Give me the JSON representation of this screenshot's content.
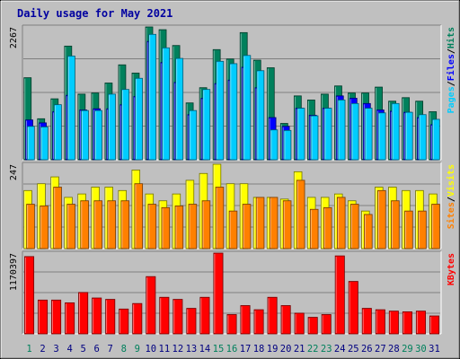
{
  "chart_data": [
    {
      "type": "bar",
      "panel": "hits-files-pages",
      "title": "Daily usage for May 2021",
      "categories": [
        "1",
        "2",
        "3",
        "4",
        "5",
        "6",
        "7",
        "8",
        "9",
        "10",
        "11",
        "12",
        "13",
        "14",
        "15",
        "16",
        "17",
        "18",
        "19",
        "20",
        "21",
        "22",
        "23",
        "24",
        "25",
        "26",
        "27",
        "28",
        "29",
        "30",
        "31"
      ],
      "ymax_label": "2267",
      "ylim": [
        0,
        2267
      ],
      "series": [
        {
          "name": "Hits",
          "color": "#00805c",
          "values": [
            1400,
            700,
            1040,
            1940,
            1120,
            1140,
            1310,
            1620,
            1480,
            2267,
            2220,
            1950,
            970,
            1230,
            1880,
            1720,
            2170,
            1700,
            1570,
            620,
            1090,
            1020,
            1120,
            1260,
            1140,
            1140,
            1240,
            1000,
            1060,
            1000,
            820
          ]
        },
        {
          "name": "Files",
          "color": "#0000ff",
          "values": [
            680,
            630,
            820,
            1100,
            850,
            870,
            870,
            940,
            1080,
            2020,
            1660,
            1320,
            770,
            1050,
            1300,
            1360,
            1580,
            1230,
            720,
            570,
            880,
            760,
            880,
            1090,
            1050,
            960,
            850,
            830,
            810,
            720,
            600
          ]
        },
        {
          "name": "Pages",
          "color": "#00ccff",
          "values": [
            570,
            560,
            940,
            1770,
            840,
            840,
            1120,
            1200,
            1390,
            2140,
            1910,
            1730,
            840,
            1200,
            1680,
            1640,
            1780,
            1520,
            510,
            500,
            880,
            750,
            880,
            1020,
            960,
            880,
            800,
            960,
            810,
            770,
            690
          ]
        }
      ],
      "legend": [
        "Pages",
        "/",
        "Files",
        "/",
        "Hits"
      ],
      "legend_colors": [
        "#00ccff",
        "#000000",
        "#0000ff",
        "#000000",
        "#00805c"
      ],
      "grid": true,
      "weekend_days": [
        1,
        8,
        9,
        15,
        16,
        22,
        23,
        29,
        30
      ]
    },
    {
      "type": "bar",
      "panel": "visits-sites",
      "categories": [
        "1",
        "2",
        "3",
        "4",
        "5",
        "6",
        "7",
        "8",
        "9",
        "10",
        "11",
        "12",
        "13",
        "14",
        "15",
        "16",
        "17",
        "18",
        "19",
        "20",
        "21",
        "22",
        "23",
        "24",
        "25",
        "26",
        "27",
        "28",
        "29",
        "30",
        "31"
      ],
      "ymax_label": "247",
      "ylim": [
        0,
        247
      ],
      "series": [
        {
          "name": "Visits",
          "color": "#ffff00",
          "values": [
            170,
            190,
            210,
            150,
            160,
            180,
            180,
            170,
            230,
            160,
            140,
            160,
            200,
            220,
            247,
            190,
            190,
            150,
            150,
            145,
            225,
            150,
            150,
            160,
            140,
            110,
            180,
            180,
            170,
            170,
            160
          ]
        },
        {
          "name": "Sites",
          "color": "#ff8000",
          "values": [
            130,
            125,
            180,
            130,
            140,
            140,
            140,
            140,
            190,
            130,
            120,
            125,
            130,
            140,
            180,
            110,
            130,
            150,
            150,
            140,
            200,
            115,
            120,
            150,
            130,
            100,
            170,
            140,
            110,
            110,
            130
          ]
        }
      ],
      "legend": [
        "Sites",
        "/",
        "Visits"
      ],
      "legend_colors": [
        "#ff8000",
        "#000000",
        "#ffff00"
      ],
      "grid": true
    },
    {
      "type": "bar",
      "panel": "kbytes",
      "categories": [
        "1",
        "2",
        "3",
        "4",
        "5",
        "6",
        "7",
        "8",
        "9",
        "10",
        "11",
        "12",
        "13",
        "14",
        "15",
        "16",
        "17",
        "18",
        "19",
        "20",
        "21",
        "22",
        "23",
        "24",
        "25",
        "26",
        "27",
        "28",
        "29",
        "30",
        "31"
      ],
      "ymax_label": "1170397",
      "ylim": [
        0,
        1170397
      ],
      "series": [
        {
          "name": "KBytes",
          "color": "#ff0000",
          "values": [
            1120000,
            490000,
            490000,
            450000,
            600000,
            520000,
            500000,
            360000,
            440000,
            830000,
            530000,
            500000,
            370000,
            530000,
            1170397,
            280000,
            410000,
            350000,
            530000,
            410000,
            300000,
            240000,
            280000,
            1130000,
            760000,
            370000,
            350000,
            330000,
            320000,
            330000,
            260000
          ]
        }
      ],
      "legend": [
        "KBytes"
      ],
      "legend_colors": [
        "#ff0000"
      ],
      "grid": true
    }
  ]
}
